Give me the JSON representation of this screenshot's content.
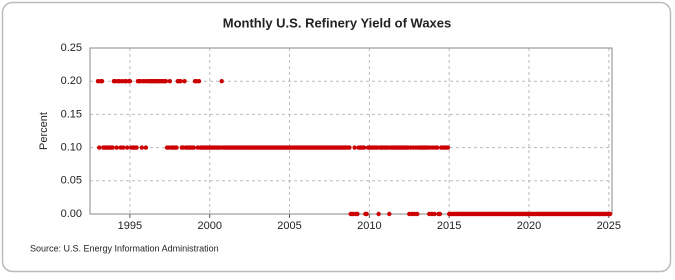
{
  "chart_data": {
    "type": "scatter",
    "title": "Monthly U.S. Refinery Yield of Waxes",
    "y_label": "Percent",
    "source": "Source: U.S. Energy Information Administration",
    "xlim": [
      1992.5,
      2025.2
    ],
    "xticks": [
      1995,
      2000,
      2005,
      2010,
      2015,
      2020,
      2025
    ],
    "ylim": [
      0,
      0.25
    ],
    "yticks": [
      {
        "value": 0,
        "label": "0.00"
      },
      {
        "value": 0.05,
        "label": "0.05"
      },
      {
        "value": 0.1,
        "label": "0.10"
      },
      {
        "value": 0.15,
        "label": "0.15"
      },
      {
        "value": 0.2,
        "label": "0.20"
      },
      {
        "value": 0.25,
        "label": "0.25"
      }
    ],
    "grid": true,
    "series": [
      {
        "color": "#cc0000",
        "x": [
          1993,
          1993.08,
          1993.17,
          1993.25,
          1993.33,
          1993.42,
          1993.5,
          1993.58,
          1993.67,
          1993.75,
          1993.83,
          1993.92,
          1994,
          1994.08,
          1994.17,
          1994.25,
          1994.33,
          1994.42,
          1994.5,
          1994.58,
          1994.67,
          1994.75,
          1994.83,
          1994.92,
          1995,
          1995.08,
          1995.17,
          1995.25,
          1995.33,
          1995.42,
          1995.5,
          1995.58,
          1995.67,
          1995.75,
          1995.83,
          1995.92,
          1996,
          1996.08,
          1996.17,
          1996.25,
          1996.33,
          1996.42,
          1996.5,
          1996.58,
          1996.67,
          1996.75,
          1996.83,
          1996.92,
          1997,
          1997.08,
          1997.17,
          1997.25,
          1997.33,
          1997.42,
          1997.5,
          1997.58,
          1997.67,
          1997.75,
          1997.83,
          1997.92,
          1998,
          1998.08,
          1998.17,
          1998.25,
          1998.33,
          1998.42,
          1998.5,
          1998.58,
          1998.67,
          1998.75,
          1998.83,
          1998.92,
          1999,
          1999.08,
          1999.17,
          1999.25,
          1999.33,
          1999.42,
          1999.5,
          1999.58,
          1999.67,
          1999.75,
          1999.83,
          1999.92,
          2000,
          2000.08,
          2000.17,
          2000.25,
          2000.33,
          2000.42,
          2000.5,
          2000.58,
          2000.67,
          2000.75,
          2000.83,
          2000.92,
          2001,
          2001.08,
          2001.17,
          2001.25,
          2001.33,
          2001.42,
          2001.5,
          2001.58,
          2001.67,
          2001.75,
          2001.83,
          2001.92,
          2002,
          2002.08,
          2002.17,
          2002.25,
          2002.33,
          2002.42,
          2002.5,
          2002.58,
          2002.67,
          2002.75,
          2002.83,
          2002.92,
          2003,
          2003.08,
          2003.17,
          2003.25,
          2003.33,
          2003.42,
          2003.5,
          2003.58,
          2003.67,
          2003.75,
          2003.83,
          2003.92,
          2004,
          2004.08,
          2004.17,
          2004.25,
          2004.33,
          2004.42,
          2004.5,
          2004.58,
          2004.67,
          2004.75,
          2004.83,
          2004.92,
          2005,
          2005.08,
          2005.17,
          2005.25,
          2005.33,
          2005.42,
          2005.5,
          2005.58,
          2005.67,
          2005.75,
          2005.83,
          2005.92,
          2006,
          2006.08,
          2006.17,
          2006.25,
          2006.33,
          2006.42,
          2006.5,
          2006.58,
          2006.67,
          2006.75,
          2006.83,
          2006.92,
          2007,
          2007.08,
          2007.17,
          2007.25,
          2007.33,
          2007.42,
          2007.5,
          2007.58,
          2007.67,
          2007.75,
          2007.83,
          2007.92,
          2008,
          2008.08,
          2008.17,
          2008.25,
          2008.33,
          2008.42,
          2008.5,
          2008.58,
          2008.67,
          2008.75,
          2008.83,
          2008.92,
          2009,
          2009.08,
          2009.17,
          2009.25,
          2009.33,
          2009.42,
          2009.5,
          2009.58,
          2009.67,
          2009.75,
          2009.83,
          2009.92,
          2010,
          2010.08,
          2010.17,
          2010.25,
          2010.33,
          2010.42,
          2010.5,
          2010.58,
          2010.67,
          2010.75,
          2010.83,
          2010.92,
          2011,
          2011.08,
          2011.17,
          2011.25,
          2011.33,
          2011.42,
          2011.5,
          2011.58,
          2011.67,
          2011.75,
          2011.83,
          2011.92,
          2012,
          2012.08,
          2012.17,
          2012.25,
          2012.33,
          2012.42,
          2012.5,
          2012.58,
          2012.67,
          2012.75,
          2012.83,
          2012.92,
          2013,
          2013.08,
          2013.17,
          2013.25,
          2013.33,
          2013.42,
          2013.5,
          2013.58,
          2013.67,
          2013.75,
          2013.83,
          2013.92,
          2014,
          2014.08,
          2014.17,
          2014.25,
          2014.33,
          2014.42,
          2014.5,
          2014.58,
          2014.67,
          2014.75,
          2014.83,
          2014.92,
          2015,
          2015.08,
          2015.17,
          2015.25,
          2015.33,
          2015.42,
          2015.5,
          2015.58,
          2015.67,
          2015.75,
          2015.83,
          2015.92,
          2016,
          2016.08,
          2016.17,
          2016.25,
          2016.33,
          2016.42,
          2016.5,
          2016.58,
          2016.67,
          2016.75,
          2016.83,
          2016.92,
          2017,
          2017.08,
          2017.17,
          2017.25,
          2017.33,
          2017.42,
          2017.5,
          2017.58,
          2017.67,
          2017.75,
          2017.83,
          2017.92,
          2018,
          2018.08,
          2018.17,
          2018.25,
          2018.33,
          2018.42,
          2018.5,
          2018.58,
          2018.67,
          2018.75,
          2018.83,
          2018.92,
          2019,
          2019.08,
          2019.17,
          2019.25,
          2019.33,
          2019.42,
          2019.5,
          2019.58,
          2019.67,
          2019.75,
          2019.83,
          2019.92,
          2020,
          2020.08,
          2020.17,
          2020.25,
          2020.33,
          2020.42,
          2020.5,
          2020.58,
          2020.67,
          2020.75,
          2020.83,
          2020.92,
          2021,
          2021.08,
          2021.17,
          2021.25,
          2021.33,
          2021.42,
          2021.5,
          2021.58,
          2021.67,
          2021.75,
          2021.83,
          2021.92,
          2022,
          2022.08,
          2022.17,
          2022.25,
          2022.33,
          2022.42,
          2022.5,
          2022.58,
          2022.67,
          2022.75,
          2022.83,
          2022.92,
          2023,
          2023.08,
          2023.17,
          2023.25,
          2023.33,
          2023.42,
          2023.5,
          2023.58,
          2023.67,
          2023.75,
          2023.83,
          2023.92,
          2024,
          2024.08,
          2024.17,
          2024.25,
          2024.33,
          2024.42,
          2024.5,
          2024.58,
          2024.67,
          2024.75,
          2024.83,
          2024.92,
          2025,
          2025.08
        ],
        "values": [
          0.2,
          0.1,
          0.2,
          0.2,
          0.1,
          0.1,
          0.1,
          0.1,
          0.1,
          0.1,
          0.1,
          0.1,
          0.2,
          0.2,
          0.1,
          0.2,
          0.2,
          0.1,
          0.2,
          0.1,
          0.2,
          0.2,
          0.1,
          0.2,
          0.2,
          0.1,
          0.1,
          0.1,
          0.1,
          0.1,
          0.2,
          0.2,
          0.2,
          0.1,
          0.2,
          0.2,
          0.1,
          0.2,
          0.2,
          0.2,
          0.2,
          0.2,
          0.2,
          0.2,
          0.2,
          0.2,
          0.2,
          0.2,
          0.2,
          0.2,
          0.2,
          0.2,
          0.1,
          0.1,
          0.2,
          0.1,
          0.1,
          0.1,
          0.1,
          0.1,
          0.2,
          0.2,
          0.2,
          0.1,
          0.1,
          0.2,
          0.1,
          0.1,
          0.1,
          0.1,
          0.1,
          0.1,
          0.1,
          0.2,
          0.2,
          0.1,
          0.2,
          0.1,
          0.1,
          0.1,
          0.1,
          0.1,
          0.1,
          0.1,
          0.1,
          0.1,
          0.1,
          0.1,
          0.1,
          0.1,
          0.1,
          0.1,
          0.1,
          0.2,
          0.1,
          0.1,
          0.1,
          0.1,
          0.1,
          0.1,
          0.1,
          0.1,
          0.1,
          0.1,
          0.1,
          0.1,
          0.1,
          0.1,
          0.1,
          0.1,
          0.1,
          0.1,
          0.1,
          0.1,
          0.1,
          0.1,
          0.1,
          0.1,
          0.1,
          0.1,
          0.1,
          0.1,
          0.1,
          0.1,
          0.1,
          0.1,
          0.1,
          0.1,
          0.1,
          0.1,
          0.1,
          0.1,
          0.1,
          0.1,
          0.1,
          0.1,
          0.1,
          0.1,
          0.1,
          0.1,
          0.1,
          0.1,
          0.1,
          0.1,
          0.1,
          0.1,
          0.1,
          0.1,
          0.1,
          0.1,
          0.1,
          0.1,
          0.1,
          0.1,
          0.1,
          0.1,
          0.1,
          0.1,
          0.1,
          0.1,
          0.1,
          0.1,
          0.1,
          0.1,
          0.1,
          0.1,
          0.1,
          0.1,
          0.1,
          0.1,
          0.1,
          0.1,
          0.1,
          0.1,
          0.1,
          0.1,
          0.1,
          0.1,
          0.1,
          0.1,
          0.1,
          0.1,
          0.1,
          0.1,
          0.1,
          0.1,
          0.1,
          0.1,
          0.1,
          0.1,
          0,
          0,
          0,
          0.1,
          0,
          0,
          0.1,
          0.1,
          0.1,
          0.1,
          0.1,
          0,
          0,
          0.1,
          0.1,
          0.1,
          0.1,
          0.1,
          0.1,
          0.1,
          0.1,
          0,
          0.1,
          0.1,
          0.1,
          0.1,
          0.1,
          0.1,
          0.1,
          0,
          0.1,
          0.1,
          0.1,
          0.1,
          0.1,
          0.1,
          0.1,
          0.1,
          0.1,
          0.1,
          0.1,
          0.1,
          0.1,
          0.1,
          0,
          0.1,
          0,
          0.1,
          0,
          0.1,
          0,
          0.1,
          0.1,
          0.1,
          0.1,
          0.1,
          0.1,
          0.1,
          0.1,
          0,
          0.1,
          0,
          0.1,
          0,
          0.1,
          0.1,
          0,
          0,
          0.1,
          0.1,
          0.1,
          0.1,
          0.1,
          0.1,
          0,
          0,
          0,
          0,
          0,
          0,
          0,
          0,
          0,
          0,
          0,
          0,
          0,
          0,
          0,
          0,
          0,
          0,
          0,
          0,
          0,
          0,
          0,
          0,
          0,
          0,
          0,
          0,
          0,
          0,
          0,
          0,
          0,
          0,
          0,
          0,
          0,
          0,
          0,
          0,
          0,
          0,
          0,
          0,
          0,
          0,
          0,
          0,
          0,
          0,
          0,
          0,
          0,
          0,
          0,
          0,
          0,
          0,
          0,
          0,
          0,
          0,
          0,
          0,
          0,
          0,
          0,
          0,
          0,
          0,
          0,
          0,
          0,
          0,
          0,
          0,
          0,
          0,
          0,
          0,
          0,
          0,
          0,
          0,
          0,
          0,
          0,
          0,
          0,
          0,
          0,
          0,
          0,
          0,
          0,
          0,
          0,
          0,
          0,
          0,
          0,
          0,
          0,
          0,
          0,
          0,
          0,
          0,
          0,
          0,
          0,
          0,
          0,
          0,
          0,
          0,
          0,
          0,
          0,
          0,
          0,
          0
        ]
      }
    ]
  }
}
